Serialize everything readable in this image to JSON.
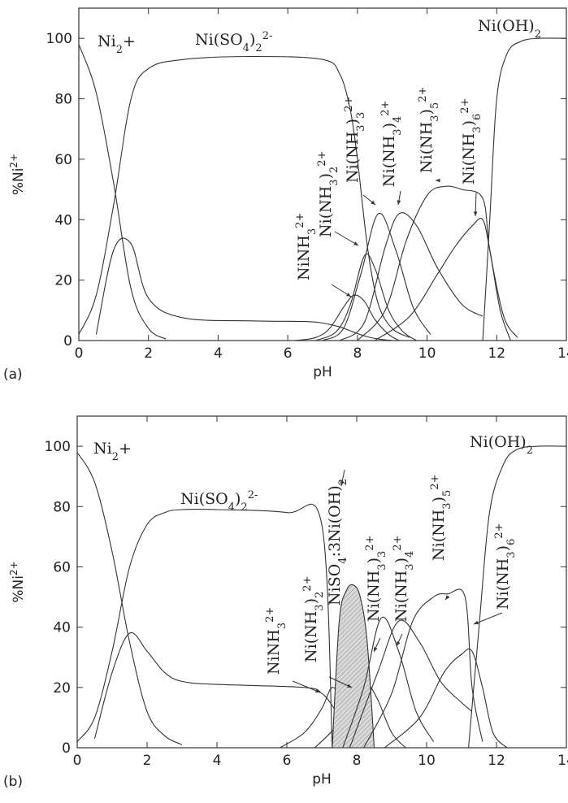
{
  "chart_data": [
    {
      "panel_label": "(a)",
      "type": "line",
      "xlabel": "pH",
      "ylabel": "%Ni2+",
      "xlim": [
        0,
        14
      ],
      "ylim": [
        0,
        110
      ],
      "xticks": [
        0,
        2,
        4,
        6,
        8,
        10,
        12,
        14
      ],
      "yticks": [
        0,
        20,
        40,
        60,
        80,
        100
      ],
      "series": [
        {
          "name": "Ni2+",
          "x": [
            0,
            0.5,
            1.0,
            1.5,
            2.0,
            2.5
          ],
          "y": [
            98,
            82,
            52,
            17,
            4,
            0.5
          ]
        },
        {
          "name": "Ni(SO4)2 2-",
          "x": [
            0,
            0.5,
            1.0,
            1.5,
            2.0,
            3.0,
            5.0,
            7.0,
            7.5,
            7.8,
            8.0,
            8.3,
            8.6,
            9.0,
            9.5
          ],
          "y": [
            2,
            15,
            45,
            80,
            90,
            93,
            94,
            93,
            88,
            76,
            60,
            30,
            12,
            4,
            1
          ]
        },
        {
          "name": "",
          "x": [
            0.5,
            1.0,
            1.5,
            2.0,
            3.0,
            5.0,
            6.5,
            7.0,
            7.5,
            7.8,
            8.2,
            8.6,
            9.0
          ],
          "y": [
            2,
            30,
            32,
            14,
            7.5,
            6.5,
            6.3,
            5.8,
            4.5,
            3.2,
            1.5,
            0.5,
            0
          ]
        },
        {
          "name": "NiNH3 2+",
          "x": [
            6.2,
            6.8,
            7.2,
            7.6,
            7.9,
            8.2,
            8.5,
            8.9,
            9.2
          ],
          "y": [
            0,
            1,
            4,
            11,
            15,
            13,
            7,
            2,
            0
          ]
        },
        {
          "name": "Ni(NH3)2 2+",
          "x": [
            6.8,
            7.4,
            7.8,
            8.2,
            8.5,
            8.9,
            9.3,
            9.7
          ],
          "y": [
            0,
            3,
            12,
            28,
            24,
            10,
            3,
            0
          ]
        },
        {
          "name": "Ni(NH3)3 2+",
          "x": [
            7.0,
            7.6,
            8.1,
            8.6,
            9.1,
            9.6,
            10.1
          ],
          "y": [
            0,
            4,
            22,
            42,
            30,
            11,
            2
          ]
        },
        {
          "name": "Ni(NH3)4 2+",
          "x": [
            7.5,
            8.2,
            8.8,
            9.2,
            9.7,
            10.3,
            11.0,
            11.6
          ],
          "y": [
            0,
            6,
            31,
            42,
            38,
            24,
            12,
            8
          ]
        },
        {
          "name": "Ni(NH3)5 2+",
          "x": [
            8.0,
            8.8,
            9.4,
            10.0,
            10.5,
            11.0,
            11.6,
            11.8,
            12.2,
            12.6
          ],
          "y": [
            0,
            10,
            33,
            48,
            51,
            50,
            47,
            30,
            8,
            1
          ]
        },
        {
          "name": "Ni(NH3)6 2+",
          "x": [
            8.5,
            9.5,
            10.3,
            10.8,
            11.3,
            11.6,
            11.8,
            12.1,
            12.4
          ],
          "y": [
            0,
            8,
            22,
            31,
            38,
            40,
            30,
            10,
            0
          ]
        },
        {
          "name": "Ni(OH)2",
          "x": [
            11.6,
            11.8,
            12.0,
            12.3,
            12.7,
            13.2,
            14.0
          ],
          "y": [
            0,
            40,
            80,
            95,
            99,
            100,
            100
          ]
        }
      ],
      "annotations": [
        {
          "text": "Ni2+"
        },
        {
          "text": "Ni(SO4)2 2-"
        },
        {
          "text": "Ni(OH)2"
        },
        {
          "text": "NiNH3 2+"
        },
        {
          "text": "Ni(NH3)2 2+"
        },
        {
          "text": "Ni(NH3)3 2+"
        },
        {
          "text": "Ni(NH3)4 2+"
        },
        {
          "text": "Ni(NH3)5 2+"
        },
        {
          "text": "Ni(NH3)6 2+"
        }
      ]
    },
    {
      "panel_label": "(b)",
      "type": "line",
      "xlabel": "pH",
      "ylabel": "%Ni2+",
      "xlim": [
        0,
        14
      ],
      "ylim": [
        0,
        110
      ],
      "xticks": [
        0,
        2,
        4,
        6,
        8,
        10,
        12,
        14
      ],
      "yticks": [
        0,
        20,
        40,
        60,
        80,
        100
      ],
      "series": [
        {
          "name": "Ni2+",
          "x": [
            0,
            0.5,
            1.0,
            1.5,
            2.0,
            2.5,
            3.0
          ],
          "y": [
            98,
            88,
            65,
            35,
            12,
            4,
            1
          ]
        },
        {
          "name": "Ni(SO4)2 2-",
          "x": [
            0,
            0.5,
            1.0,
            1.5,
            2.0,
            2.5,
            3.0,
            4.0,
            6.0,
            7.0,
            7.3
          ],
          "y": [
            2,
            10,
            32,
            60,
            74,
            78,
            79,
            79,
            78,
            74,
            0
          ]
        },
        {
          "name": "",
          "x": [
            0.5,
            1.0,
            1.5,
            2.0,
            2.5,
            3.0,
            4.0,
            6.5,
            7.0,
            7.3,
            7.6,
            8.0,
            8.3
          ],
          "y": [
            3,
            25,
            38,
            32,
            25,
            22,
            21,
            20,
            18,
            14,
            8,
            2,
            0
          ]
        },
        {
          "name": "NiNH3 2+",
          "x": [
            5.8,
            6.5,
            7.0,
            7.3,
            7.6,
            8.0,
            8.4
          ],
          "y": [
            0,
            5,
            13,
            20,
            15,
            5,
            0
          ]
        },
        {
          "name": "Ni(NH3)2 2+",
          "x": [
            6.8,
            7.4,
            8.0,
            8.3,
            8.6,
            9.0,
            9.4
          ],
          "y": [
            0,
            7,
            18,
            21,
            16,
            5,
            0
          ]
        },
        {
          "name": "NiSO4:3Ni(OH)2",
          "x": [
            7.3,
            7.5,
            7.7,
            7.9,
            8.1,
            8.3,
            8.5
          ],
          "y": [
            0,
            42,
            52,
            54,
            50,
            35,
            0
          ]
        },
        {
          "name": "Ni(NH3)3 2+",
          "x": [
            7.6,
            8.2,
            8.7,
            9.2,
            9.7,
            10.2
          ],
          "y": [
            0,
            20,
            43,
            32,
            12,
            2
          ]
        },
        {
          "name": "Ni(NH3)4 2+",
          "x": [
            7.8,
            8.6,
            9.2,
            9.8,
            10.4,
            11.0,
            11.3
          ],
          "y": [
            0,
            25,
            42,
            35,
            22,
            15,
            12
          ]
        },
        {
          "name": "Ni(NH3)5 2+",
          "x": [
            8.2,
            9.0,
            9.6,
            10.2,
            10.6,
            11.1,
            11.3,
            11.6
          ],
          "y": [
            0,
            18,
            42,
            50,
            51,
            50,
            20,
            2
          ]
        },
        {
          "name": "Ni(NH3)6 2+",
          "x": [
            8.8,
            9.8,
            10.5,
            11.0,
            11.3,
            11.6,
            11.9,
            12.3
          ],
          "y": [
            0,
            10,
            25,
            31,
            32,
            20,
            5,
            0
          ]
        },
        {
          "name": "Ni(OH)2",
          "x": [
            11.2,
            11.5,
            11.8,
            12.2,
            12.6,
            13.2,
            14.0
          ],
          "y": [
            0,
            40,
            78,
            94,
            99,
            100,
            100
          ]
        }
      ],
      "annotations": [
        {
          "text": "Ni2+"
        },
        {
          "text": "Ni(SO4)2 2-"
        },
        {
          "text": "Ni(OH)2"
        },
        {
          "text": "NiNH3 2+"
        },
        {
          "text": "Ni(NH3)2 2+"
        },
        {
          "text": "NiSO4:3Ni(OH)2"
        },
        {
          "text": "Ni(NH3)3 2+"
        },
        {
          "text": "Ni(NH3)4 2+"
        },
        {
          "text": "Ni(NH3)5 2+"
        },
        {
          "text": "Ni(NH3)6 2+"
        }
      ]
    }
  ]
}
